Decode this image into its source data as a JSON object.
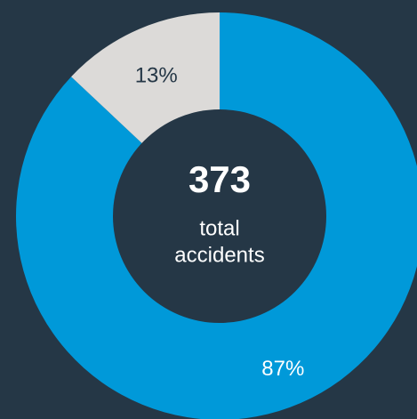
{
  "chart_data": {
    "type": "donut",
    "values": [
      87,
      13
    ],
    "value_labels": [
      "87%",
      "13%"
    ],
    "colors": [
      "#0099d9",
      "#dcdad8"
    ],
    "label_colors": [
      "#ffffff",
      "#253746"
    ],
    "center_value": 373,
    "center_label": [
      "total",
      "accidents"
    ]
  }
}
